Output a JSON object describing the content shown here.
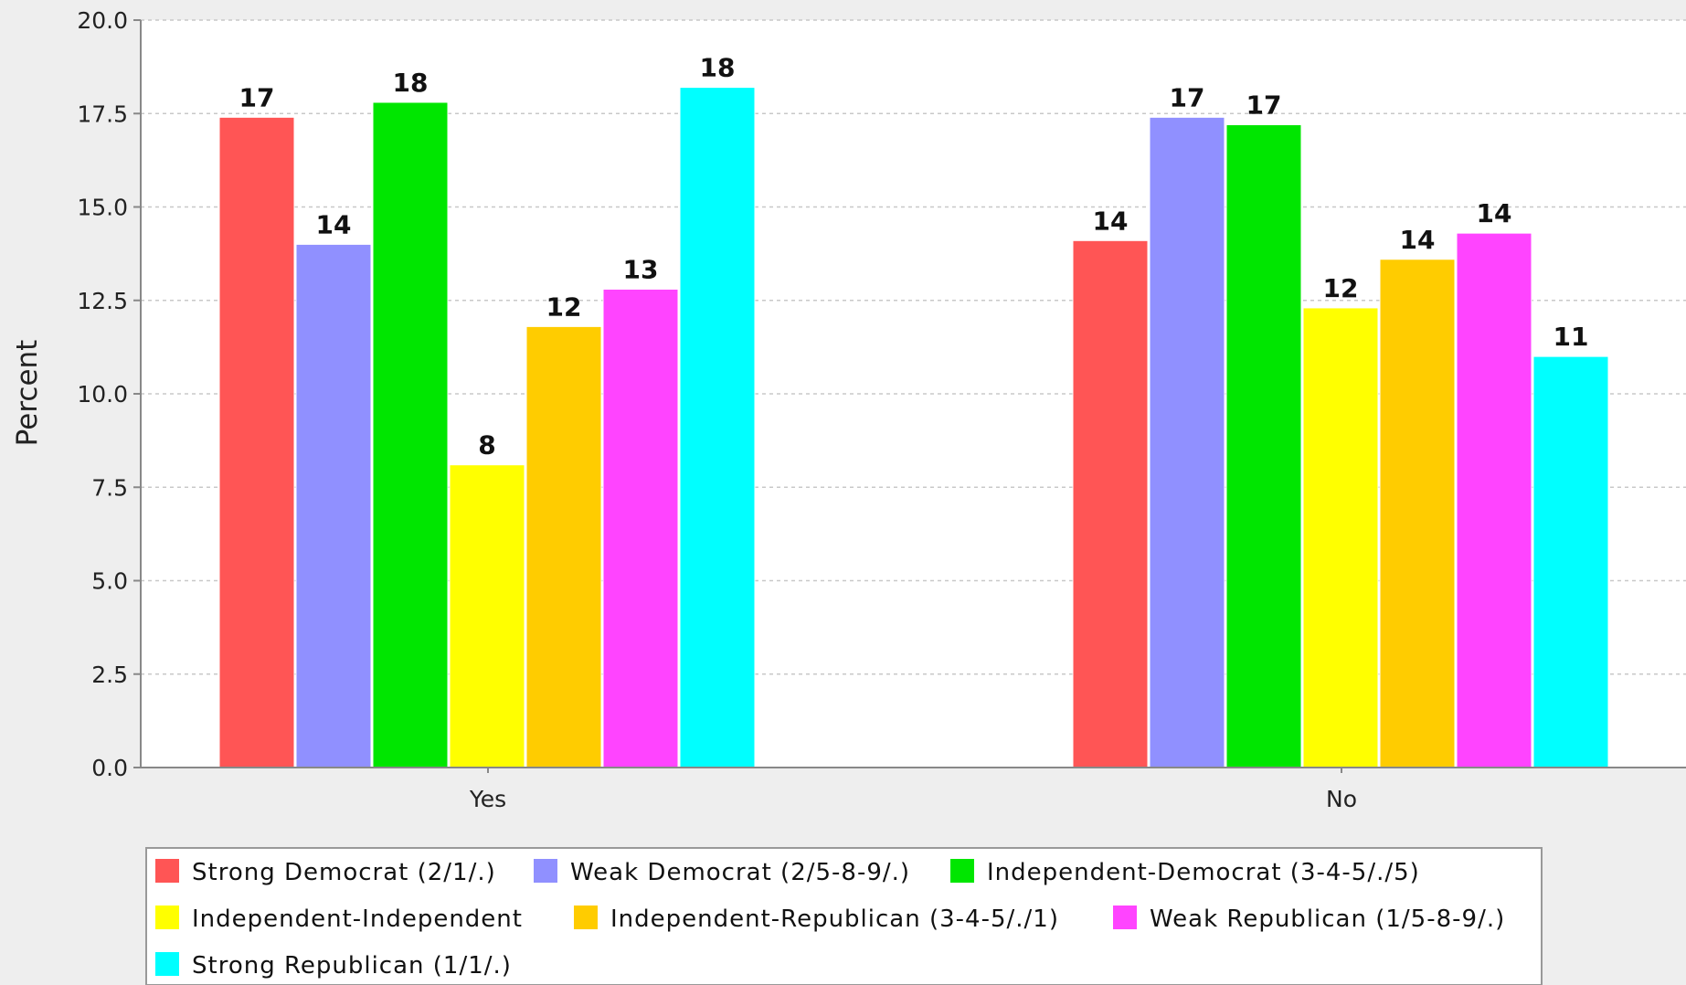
{
  "chart_data": {
    "type": "bar",
    "ylabel": "Percent",
    "xlabel": "",
    "ylim": [
      0,
      20
    ],
    "yticks": [
      "0.0",
      "2.5",
      "5.0",
      "7.5",
      "10.0",
      "12.5",
      "15.0",
      "17.5",
      "20.0"
    ],
    "categories": [
      "Yes",
      "No"
    ],
    "grid": true,
    "legend_position": "bottom",
    "series": [
      {
        "name": "Strong Democrat (2/1/.)",
        "color": "#ff5555",
        "values": [
          17.4,
          14.1
        ],
        "labels": [
          "17",
          "14"
        ]
      },
      {
        "name": "Weak Democrat (2/5-8-9/.)",
        "color": "#9090ff",
        "values": [
          14.0,
          17.4
        ],
        "labels": [
          "14",
          "17"
        ]
      },
      {
        "name": "Independent-Democrat (3-4-5/./5)",
        "color": "#00e600",
        "values": [
          17.8,
          17.2
        ],
        "labels": [
          "18",
          "17"
        ]
      },
      {
        "name": "Independent-Independent",
        "color": "#ffff00",
        "values": [
          8.1,
          12.3
        ],
        "labels": [
          "8",
          "12"
        ]
      },
      {
        "name": "Independent-Republican (3-4-5/./1)",
        "color": "#ffcc00",
        "values": [
          11.8,
          13.6
        ],
        "labels": [
          "12",
          "14"
        ]
      },
      {
        "name": "Weak Republican (1/5-8-9/.)",
        "color": "#ff44ff",
        "values": [
          12.8,
          14.3
        ],
        "labels": [
          "13",
          "14"
        ]
      },
      {
        "name": "Strong Republican (1/1/.)",
        "color": "#00ffff",
        "values": [
          18.2,
          11.0
        ],
        "labels": [
          "18",
          "11"
        ]
      }
    ]
  }
}
